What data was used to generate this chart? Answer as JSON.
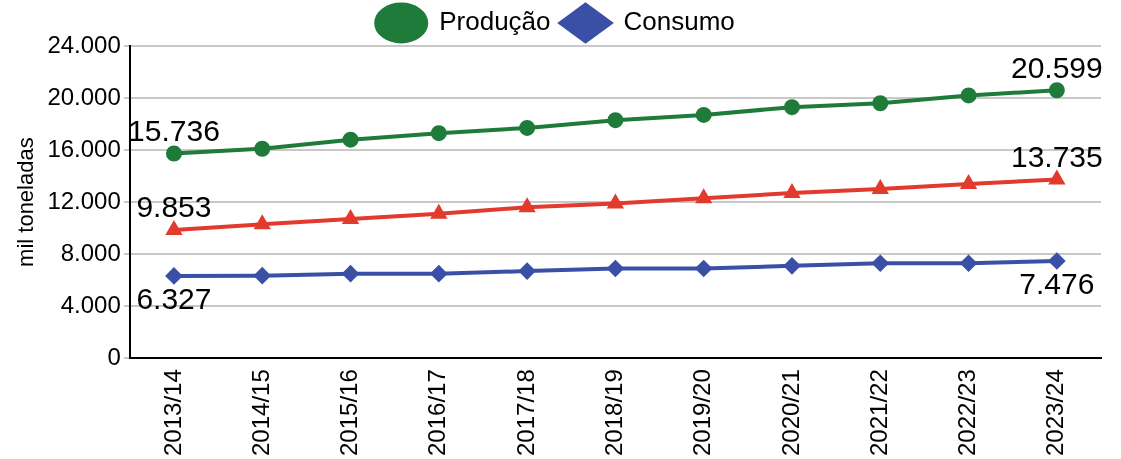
{
  "chart_data": {
    "type": "line",
    "ylabel": "mil toneladas",
    "categories": [
      "2013/14",
      "2014/15",
      "2015/16",
      "2016/17",
      "2017/18",
      "2018/19",
      "2019/20",
      "2020/21",
      "2021/22",
      "2022/23",
      "2023/24"
    ],
    "series": [
      {
        "name": "Produção",
        "color": "#1e7b3a",
        "marker": "circle",
        "values": [
          15736,
          16100,
          16800,
          17300,
          17700,
          18300,
          18700,
          19300,
          19600,
          20200,
          20599
        ],
        "value_labels": [
          "15.736",
          null,
          null,
          null,
          null,
          null,
          null,
          null,
          null,
          null,
          "20.599"
        ]
      },
      {
        "name": "Consumo",
        "color": "#3a4fa6",
        "marker": "diamond",
        "values": [
          6327,
          6350,
          6500,
          6500,
          6700,
          6900,
          6900,
          7100,
          7300,
          7300,
          7476
        ],
        "value_labels": [
          "6.327",
          null,
          null,
          null,
          null,
          null,
          null,
          null,
          null,
          null,
          "7.476"
        ]
      },
      {
        "color": "#e23a2c",
        "marker": "triangle",
        "values": [
          9853,
          10300,
          10700,
          11100,
          11600,
          11900,
          12300,
          12700,
          13000,
          13400,
          13735
        ],
        "value_labels": [
          "9.853",
          null,
          null,
          null,
          null,
          null,
          null,
          null,
          null,
          null,
          "13.735"
        ]
      }
    ],
    "ylim": [
      0,
      24000
    ],
    "yticks": [
      {
        "value": 0,
        "label": "0"
      },
      {
        "value": 4000,
        "label": "4.000"
      },
      {
        "value": 8000,
        "label": "8.000"
      },
      {
        "value": 12000,
        "label": "12.000"
      },
      {
        "value": 16000,
        "label": "16.000"
      },
      {
        "value": 20000,
        "label": "20.000"
      },
      {
        "value": 24000,
        "label": "24.000"
      }
    ],
    "grid": "y",
    "legend": "top"
  }
}
